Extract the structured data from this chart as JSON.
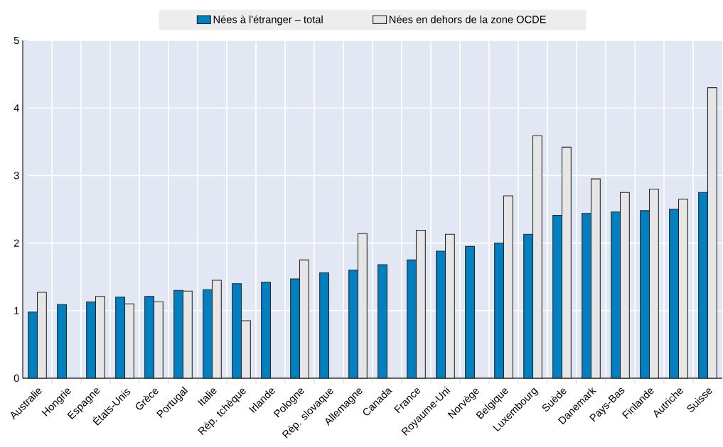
{
  "chart_data": {
    "type": "bar",
    "categories": [
      "Australie",
      "Hongrie",
      "Espagne",
      "États-Unis",
      "Grèce",
      "Portugal",
      "Italie",
      "Rép. tchèque",
      "Irlande",
      "Pologne",
      "Rép. slovaque",
      "Allemagne",
      "Canada",
      "France",
      "Royaume-Uni",
      "Norvège",
      "Belgique",
      "Luxembourg",
      "Suède",
      "Danemark",
      "Pays-Bas",
      "Finlande",
      "Autriche",
      "Suisse"
    ],
    "series": [
      {
        "name": "Nées à l'étranger – total",
        "color": "#0080c0",
        "values": [
          0.98,
          1.09,
          1.13,
          1.2,
          1.21,
          1.3,
          1.31,
          1.4,
          1.42,
          1.47,
          1.56,
          1.6,
          1.68,
          1.75,
          1.88,
          1.95,
          2.0,
          2.13,
          2.41,
          2.44,
          2.46,
          2.48,
          2.5,
          2.75
        ]
      },
      {
        "name": "Nées en dehors de la zone OCDE",
        "color": "#e6e6e6",
        "values": [
          1.27,
          null,
          1.21,
          1.1,
          1.13,
          1.29,
          1.45,
          0.85,
          null,
          1.75,
          null,
          2.14,
          null,
          2.19,
          2.13,
          null,
          2.7,
          3.59,
          3.42,
          2.95,
          2.75,
          2.8,
          2.65,
          4.3
        ]
      }
    ],
    "ylim": [
      0,
      5
    ],
    "yticks": [
      0,
      1,
      2,
      3,
      4,
      5
    ],
    "grid": true,
    "legend": "top"
  }
}
